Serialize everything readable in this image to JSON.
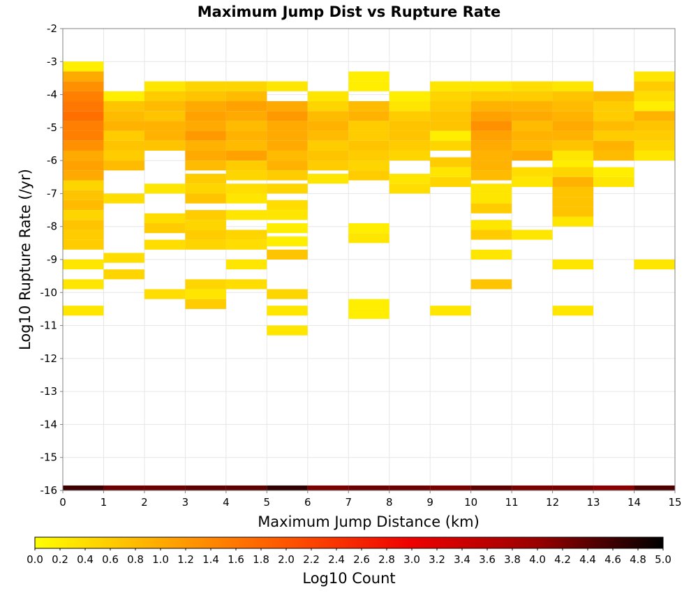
{
  "chart_data": {
    "type": "heatmap",
    "title": "Maximum Jump Dist vs Rupture Rate",
    "xlabel": "Maximum Jump Distance (km)",
    "ylabel": "Log10 Rupture Rate (/yr)",
    "colorbar_label": "Log10 Count",
    "xlim": [
      0,
      15
    ],
    "ylim": [
      -16,
      -2
    ],
    "x_ticks": [
      "0",
      "1",
      "2",
      "3",
      "4",
      "5",
      "6",
      "7",
      "8",
      "9",
      "10",
      "11",
      "12",
      "13",
      "14",
      "15"
    ],
    "y_ticks": [
      "-2",
      "-3",
      "-4",
      "-5",
      "-6",
      "-7",
      "-8",
      "-9",
      "-10",
      "-11",
      "-12",
      "-13",
      "-14",
      "-15",
      "-16"
    ],
    "colorbar_ticks": [
      "0.0",
      "0.2",
      "0.4",
      "0.6",
      "0.8",
      "1.0",
      "1.2",
      "1.4",
      "1.6",
      "1.8",
      "2.0",
      "2.2",
      "2.4",
      "2.6",
      "2.8",
      "3.0",
      "3.2",
      "3.4",
      "3.6",
      "3.8",
      "4.0",
      "4.2",
      "4.4",
      "4.6",
      "4.8",
      "5.0"
    ],
    "colorbar_range": [
      0,
      5
    ],
    "colormap": [
      "#ffff00",
      "#ffaa00",
      "#ff5500",
      "#ee0000",
      "#990000",
      "#000000"
    ],
    "grid": true,
    "cell_size": {
      "x": 1,
      "y": 0.3
    },
    "cells": [
      {
        "x": 0,
        "y": -3.15,
        "v": 0.2
      },
      {
        "x": 0,
        "y": -3.45,
        "v": 1.0
      },
      {
        "x": 0,
        "y": -3.75,
        "v": 1.3
      },
      {
        "x": 0,
        "y": -4.05,
        "v": 1.5
      },
      {
        "x": 0,
        "y": -4.35,
        "v": 1.6
      },
      {
        "x": 0,
        "y": -4.65,
        "v": 1.7
      },
      {
        "x": 0,
        "y": -4.95,
        "v": 1.5
      },
      {
        "x": 0,
        "y": -5.25,
        "v": 1.5
      },
      {
        "x": 0,
        "y": -5.55,
        "v": 1.3
      },
      {
        "x": 0,
        "y": -5.85,
        "v": 1.0
      },
      {
        "x": 0,
        "y": -6.15,
        "v": 1.1
      },
      {
        "x": 0,
        "y": -6.45,
        "v": 1.0
      },
      {
        "x": 0,
        "y": -6.75,
        "v": 0.5
      },
      {
        "x": 0,
        "y": -7.05,
        "v": 0.7
      },
      {
        "x": 0,
        "y": -7.35,
        "v": 0.8
      },
      {
        "x": 0,
        "y": -7.65,
        "v": 0.5
      },
      {
        "x": 0,
        "y": -7.95,
        "v": 0.7
      },
      {
        "x": 0,
        "y": -8.25,
        "v": 0.6
      },
      {
        "x": 0,
        "y": -8.55,
        "v": 0.6
      },
      {
        "x": 0,
        "y": -9.15,
        "v": 0.3
      },
      {
        "x": 0,
        "y": -9.75,
        "v": 0.3
      },
      {
        "x": 0,
        "y": -10.55,
        "v": 0.3
      },
      {
        "x": 0,
        "y": -16.0,
        "v": 4.6
      },
      {
        "x": 1,
        "y": -4.05,
        "v": 0.2
      },
      {
        "x": 1,
        "y": -4.35,
        "v": 0.7
      },
      {
        "x": 1,
        "y": -4.65,
        "v": 0.8
      },
      {
        "x": 1,
        "y": -4.95,
        "v": 0.9
      },
      {
        "x": 1,
        "y": -5.25,
        "v": 0.6
      },
      {
        "x": 1,
        "y": -5.55,
        "v": 0.7
      },
      {
        "x": 1,
        "y": -5.85,
        "v": 0.6
      },
      {
        "x": 1,
        "y": -6.15,
        "v": 0.8
      },
      {
        "x": 1,
        "y": -7.15,
        "v": 0.4
      },
      {
        "x": 1,
        "y": -8.95,
        "v": 0.4
      },
      {
        "x": 1,
        "y": -9.45,
        "v": 0.5
      },
      {
        "x": 1,
        "y": -16.0,
        "v": 4.3
      },
      {
        "x": 2,
        "y": -3.75,
        "v": 0.3
      },
      {
        "x": 2,
        "y": -4.05,
        "v": 0.6
      },
      {
        "x": 2,
        "y": -4.35,
        "v": 0.8
      },
      {
        "x": 2,
        "y": -4.65,
        "v": 0.7
      },
      {
        "x": 2,
        "y": -4.95,
        "v": 0.9
      },
      {
        "x": 2,
        "y": -5.25,
        "v": 0.9
      },
      {
        "x": 2,
        "y": -5.55,
        "v": 0.7
      },
      {
        "x": 2,
        "y": -6.85,
        "v": 0.3
      },
      {
        "x": 2,
        "y": -7.75,
        "v": 0.4
      },
      {
        "x": 2,
        "y": -8.05,
        "v": 0.6
      },
      {
        "x": 2,
        "y": -8.55,
        "v": 0.4
      },
      {
        "x": 2,
        "y": -10.05,
        "v": 0.4
      },
      {
        "x": 2,
        "y": -16.0,
        "v": 4.3
      },
      {
        "x": 3,
        "y": -3.75,
        "v": 0.5
      },
      {
        "x": 3,
        "y": -4.05,
        "v": 0.7
      },
      {
        "x": 3,
        "y": -4.35,
        "v": 1.0
      },
      {
        "x": 3,
        "y": -4.65,
        "v": 1.1
      },
      {
        "x": 3,
        "y": -4.95,
        "v": 1.0
      },
      {
        "x": 3,
        "y": -5.25,
        "v": 1.2
      },
      {
        "x": 3,
        "y": -5.55,
        "v": 0.9
      },
      {
        "x": 3,
        "y": -5.85,
        "v": 1.0
      },
      {
        "x": 3,
        "y": -6.15,
        "v": 0.8
      },
      {
        "x": 3,
        "y": -6.55,
        "v": 0.6
      },
      {
        "x": 3,
        "y": -6.85,
        "v": 0.5
      },
      {
        "x": 3,
        "y": -7.15,
        "v": 0.7
      },
      {
        "x": 3,
        "y": -7.65,
        "v": 0.6
      },
      {
        "x": 3,
        "y": -7.95,
        "v": 0.5
      },
      {
        "x": 3,
        "y": -8.25,
        "v": 0.6
      },
      {
        "x": 3,
        "y": -8.55,
        "v": 0.5
      },
      {
        "x": 3,
        "y": -9.75,
        "v": 0.5
      },
      {
        "x": 3,
        "y": -10.05,
        "v": 0.3
      },
      {
        "x": 3,
        "y": -10.35,
        "v": 0.6
      },
      {
        "x": 3,
        "y": -16.0,
        "v": 4.4
      },
      {
        "x": 4,
        "y": -3.75,
        "v": 0.5
      },
      {
        "x": 4,
        "y": -4.05,
        "v": 0.8
      },
      {
        "x": 4,
        "y": -4.35,
        "v": 1.1
      },
      {
        "x": 4,
        "y": -4.65,
        "v": 1.0
      },
      {
        "x": 4,
        "y": -4.95,
        "v": 0.8
      },
      {
        "x": 4,
        "y": -5.25,
        "v": 0.9
      },
      {
        "x": 4,
        "y": -5.55,
        "v": 0.8
      },
      {
        "x": 4,
        "y": -5.85,
        "v": 1.1
      },
      {
        "x": 4,
        "y": -6.15,
        "v": 0.6
      },
      {
        "x": 4,
        "y": -6.45,
        "v": 0.5
      },
      {
        "x": 4,
        "y": -6.85,
        "v": 0.4
      },
      {
        "x": 4,
        "y": -7.15,
        "v": 0.3
      },
      {
        "x": 4,
        "y": -7.65,
        "v": 0.3
      },
      {
        "x": 4,
        "y": -8.25,
        "v": 0.5
      },
      {
        "x": 4,
        "y": -8.55,
        "v": 0.4
      },
      {
        "x": 4,
        "y": -9.15,
        "v": 0.3
      },
      {
        "x": 4,
        "y": -9.75,
        "v": 0.4
      },
      {
        "x": 4,
        "y": -16.0,
        "v": 4.4
      },
      {
        "x": 5,
        "y": -3.75,
        "v": 0.3
      },
      {
        "x": 5,
        "y": -4.35,
        "v": 1.0
      },
      {
        "x": 5,
        "y": -4.65,
        "v": 1.2
      },
      {
        "x": 5,
        "y": -4.95,
        "v": 1.0
      },
      {
        "x": 5,
        "y": -5.25,
        "v": 1.0
      },
      {
        "x": 5,
        "y": -5.55,
        "v": 1.0
      },
      {
        "x": 5,
        "y": -5.85,
        "v": 0.8
      },
      {
        "x": 5,
        "y": -6.15,
        "v": 0.9
      },
      {
        "x": 5,
        "y": -6.45,
        "v": 0.6
      },
      {
        "x": 5,
        "y": -6.85,
        "v": 0.5
      },
      {
        "x": 5,
        "y": -7.35,
        "v": 0.4
      },
      {
        "x": 5,
        "y": -7.65,
        "v": 0.3
      },
      {
        "x": 5,
        "y": -8.05,
        "v": 0.2
      },
      {
        "x": 5,
        "y": -8.45,
        "v": 0.2
      },
      {
        "x": 5,
        "y": -8.85,
        "v": 0.7
      },
      {
        "x": 5,
        "y": -10.05,
        "v": 0.5
      },
      {
        "x": 5,
        "y": -10.55,
        "v": 0.3
      },
      {
        "x": 5,
        "y": -11.15,
        "v": 0.3
      },
      {
        "x": 5,
        "y": -16.0,
        "v": 4.7
      },
      {
        "x": 6,
        "y": -4.05,
        "v": 0.3
      },
      {
        "x": 6,
        "y": -4.35,
        "v": 0.5
      },
      {
        "x": 6,
        "y": -4.65,
        "v": 0.8
      },
      {
        "x": 6,
        "y": -4.95,
        "v": 0.9
      },
      {
        "x": 6,
        "y": -5.25,
        "v": 0.8
      },
      {
        "x": 6,
        "y": -5.55,
        "v": 0.6
      },
      {
        "x": 6,
        "y": -5.85,
        "v": 0.7
      },
      {
        "x": 6,
        "y": -6.15,
        "v": 0.6
      },
      {
        "x": 6,
        "y": -6.55,
        "v": 0.3
      },
      {
        "x": 6,
        "y": -16.0,
        "v": 4.2
      },
      {
        "x": 7,
        "y": -3.45,
        "v": 0.2
      },
      {
        "x": 7,
        "y": -3.75,
        "v": 0.2
      },
      {
        "x": 7,
        "y": -4.35,
        "v": 0.8
      },
      {
        "x": 7,
        "y": -4.65,
        "v": 0.9
      },
      {
        "x": 7,
        "y": -4.95,
        "v": 0.6
      },
      {
        "x": 7,
        "y": -5.25,
        "v": 0.6
      },
      {
        "x": 7,
        "y": -5.55,
        "v": 0.7
      },
      {
        "x": 7,
        "y": -5.85,
        "v": 0.6
      },
      {
        "x": 7,
        "y": -6.15,
        "v": 0.5
      },
      {
        "x": 7,
        "y": -6.45,
        "v": 0.6
      },
      {
        "x": 7,
        "y": -8.05,
        "v": 0.2
      },
      {
        "x": 7,
        "y": -8.35,
        "v": 0.3
      },
      {
        "x": 7,
        "y": -10.35,
        "v": 0.2
      },
      {
        "x": 7,
        "y": -10.65,
        "v": 0.2
      },
      {
        "x": 7,
        "y": -16.0,
        "v": 4.3
      },
      {
        "x": 8,
        "y": -4.05,
        "v": 0.2
      },
      {
        "x": 8,
        "y": -4.35,
        "v": 0.3
      },
      {
        "x": 8,
        "y": -4.65,
        "v": 0.6
      },
      {
        "x": 8,
        "y": -4.95,
        "v": 0.7
      },
      {
        "x": 8,
        "y": -5.25,
        "v": 0.7
      },
      {
        "x": 8,
        "y": -5.55,
        "v": 0.6
      },
      {
        "x": 8,
        "y": -5.85,
        "v": 0.5
      },
      {
        "x": 8,
        "y": -6.55,
        "v": 0.3
      },
      {
        "x": 8,
        "y": -6.85,
        "v": 0.4
      },
      {
        "x": 8,
        "y": -16.0,
        "v": 4.3
      },
      {
        "x": 9,
        "y": -3.75,
        "v": 0.3
      },
      {
        "x": 9,
        "y": -4.05,
        "v": 0.5
      },
      {
        "x": 9,
        "y": -4.35,
        "v": 0.6
      },
      {
        "x": 9,
        "y": -4.65,
        "v": 0.7
      },
      {
        "x": 9,
        "y": -4.95,
        "v": 0.7
      },
      {
        "x": 9,
        "y": -5.25,
        "v": 0.2
      },
      {
        "x": 9,
        "y": -5.55,
        "v": 0.5
      },
      {
        "x": 9,
        "y": -6.05,
        "v": 0.6
      },
      {
        "x": 9,
        "y": -6.35,
        "v": 0.3
      },
      {
        "x": 9,
        "y": -6.65,
        "v": 0.5
      },
      {
        "x": 9,
        "y": -10.55,
        "v": 0.3
      },
      {
        "x": 9,
        "y": -16.0,
        "v": 4.2
      },
      {
        "x": 10,
        "y": -3.75,
        "v": 0.3
      },
      {
        "x": 10,
        "y": -4.05,
        "v": 0.6
      },
      {
        "x": 10,
        "y": -4.35,
        "v": 0.9
      },
      {
        "x": 10,
        "y": -4.65,
        "v": 1.1
      },
      {
        "x": 10,
        "y": -4.95,
        "v": 1.3
      },
      {
        "x": 10,
        "y": -5.25,
        "v": 1.1
      },
      {
        "x": 10,
        "y": -5.55,
        "v": 1.0
      },
      {
        "x": 10,
        "y": -5.85,
        "v": 0.9
      },
      {
        "x": 10,
        "y": -6.15,
        "v": 0.9
      },
      {
        "x": 10,
        "y": -6.45,
        "v": 0.8
      },
      {
        "x": 10,
        "y": -6.85,
        "v": 0.3
      },
      {
        "x": 10,
        "y": -7.15,
        "v": 0.3
      },
      {
        "x": 10,
        "y": -7.45,
        "v": 0.6
      },
      {
        "x": 10,
        "y": -7.95,
        "v": 0.3
      },
      {
        "x": 10,
        "y": -8.25,
        "v": 0.6
      },
      {
        "x": 10,
        "y": -8.85,
        "v": 0.3
      },
      {
        "x": 10,
        "y": -9.75,
        "v": 0.7
      },
      {
        "x": 10,
        "y": -16.0,
        "v": 4.4
      },
      {
        "x": 11,
        "y": -3.75,
        "v": 0.4
      },
      {
        "x": 11,
        "y": -4.05,
        "v": 0.6
      },
      {
        "x": 11,
        "y": -4.35,
        "v": 0.9
      },
      {
        "x": 11,
        "y": -4.65,
        "v": 1.0
      },
      {
        "x": 11,
        "y": -4.95,
        "v": 0.8
      },
      {
        "x": 11,
        "y": -5.25,
        "v": 0.9
      },
      {
        "x": 11,
        "y": -5.55,
        "v": 0.8
      },
      {
        "x": 11,
        "y": -5.85,
        "v": 1.0
      },
      {
        "x": 11,
        "y": -6.35,
        "v": 0.4
      },
      {
        "x": 11,
        "y": -6.65,
        "v": 0.3
      },
      {
        "x": 11,
        "y": -8.25,
        "v": 0.3
      },
      {
        "x": 11,
        "y": -16.0,
        "v": 4.2
      },
      {
        "x": 12,
        "y": -3.75,
        "v": 0.3
      },
      {
        "x": 12,
        "y": -4.05,
        "v": 0.7
      },
      {
        "x": 12,
        "y": -4.35,
        "v": 0.8
      },
      {
        "x": 12,
        "y": -4.65,
        "v": 0.9
      },
      {
        "x": 12,
        "y": -4.95,
        "v": 1.0
      },
      {
        "x": 12,
        "y": -5.25,
        "v": 0.9
      },
      {
        "x": 12,
        "y": -5.55,
        "v": 0.7
      },
      {
        "x": 12,
        "y": -5.85,
        "v": 0.3
      },
      {
        "x": 12,
        "y": -6.15,
        "v": 0.2
      },
      {
        "x": 12,
        "y": -6.35,
        "v": 0.5
      },
      {
        "x": 12,
        "y": -6.65,
        "v": 0.9
      },
      {
        "x": 12,
        "y": -6.95,
        "v": 0.7
      },
      {
        "x": 12,
        "y": -7.25,
        "v": 0.7
      },
      {
        "x": 12,
        "y": -7.55,
        "v": 0.7
      },
      {
        "x": 12,
        "y": -7.85,
        "v": 0.3
      },
      {
        "x": 12,
        "y": -9.15,
        "v": 0.3
      },
      {
        "x": 12,
        "y": -10.55,
        "v": 0.3
      },
      {
        "x": 12,
        "y": -16.0,
        "v": 4.2
      },
      {
        "x": 13,
        "y": -4.05,
        "v": 0.8
      },
      {
        "x": 13,
        "y": -4.35,
        "v": 0.6
      },
      {
        "x": 13,
        "y": -4.65,
        "v": 0.6
      },
      {
        "x": 13,
        "y": -4.95,
        "v": 0.8
      },
      {
        "x": 13,
        "y": -5.25,
        "v": 0.6
      },
      {
        "x": 13,
        "y": -5.55,
        "v": 0.9
      },
      {
        "x": 13,
        "y": -5.85,
        "v": 0.8
      },
      {
        "x": 13,
        "y": -6.35,
        "v": 0.2
      },
      {
        "x": 13,
        "y": -6.65,
        "v": 0.3
      },
      {
        "x": 13,
        "y": -16.0,
        "v": 4.1
      },
      {
        "x": 14,
        "y": -3.45,
        "v": 0.3
      },
      {
        "x": 14,
        "y": -3.75,
        "v": 0.6
      },
      {
        "x": 14,
        "y": -4.05,
        "v": 0.4
      },
      {
        "x": 14,
        "y": -4.35,
        "v": 0.2
      },
      {
        "x": 14,
        "y": -4.65,
        "v": 0.9
      },
      {
        "x": 14,
        "y": -4.95,
        "v": 0.7
      },
      {
        "x": 14,
        "y": -5.25,
        "v": 0.6
      },
      {
        "x": 14,
        "y": -5.55,
        "v": 0.5
      },
      {
        "x": 14,
        "y": -5.85,
        "v": 0.3
      },
      {
        "x": 14,
        "y": -9.15,
        "v": 0.3
      },
      {
        "x": 14,
        "y": -16.0,
        "v": 4.5
      }
    ]
  }
}
